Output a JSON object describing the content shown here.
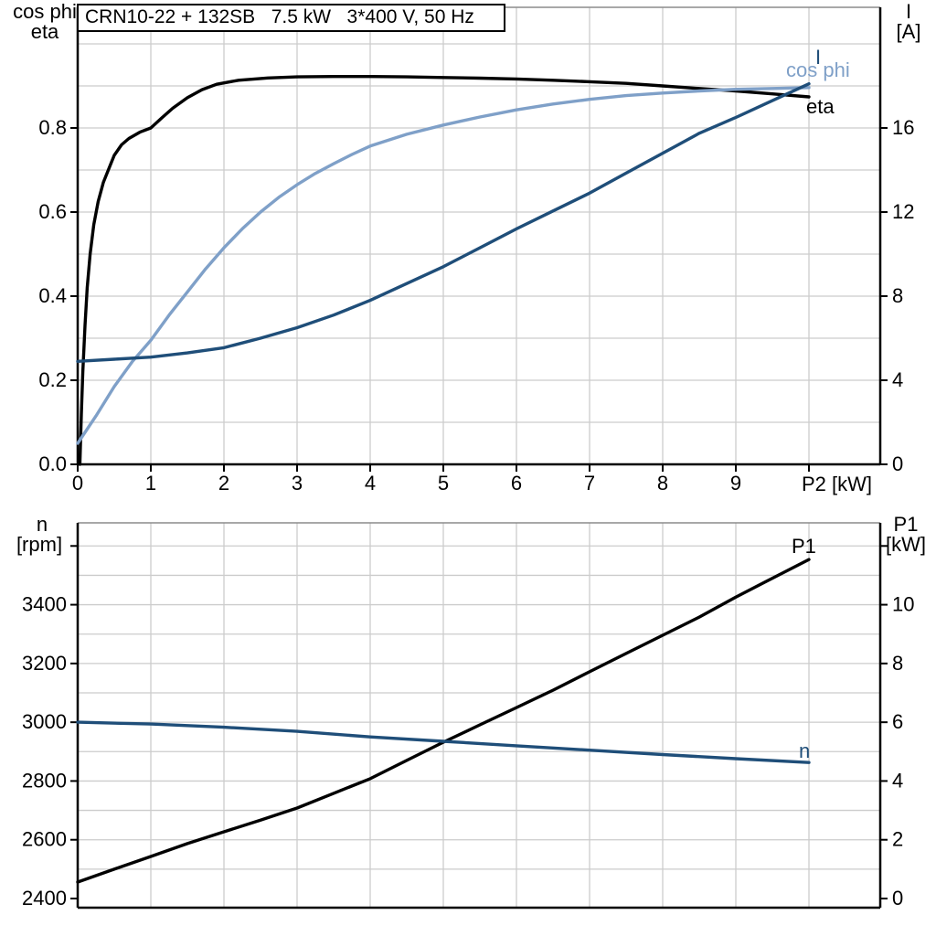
{
  "title": "CRN10-22 + 132SB   7.5 kW   3*400 V, 50 Hz",
  "colors": {
    "black": "#000000",
    "dark_blue": "#1F4E79",
    "light_blue": "#7FA0C8",
    "grid": "#CCCCCC",
    "frame_gray": "#8C8C8C"
  },
  "labels": {
    "top_left_line1": "cos phi",
    "top_left_line2": "eta",
    "top_right_line1": "I",
    "top_right_line2": "[A]",
    "x_axis": "P2 [kW]",
    "bottom_left_line1": "n",
    "bottom_left_line2": "[rpm]",
    "bottom_right_line1": "P1",
    "bottom_right_line2": "[kW]",
    "curve_i": "I",
    "curve_cos_phi": "cos phi",
    "curve_eta": "eta",
    "curve_p1": "P1",
    "curve_n": "n"
  },
  "axes": {
    "top_x_tick_labels": [
      "0",
      "1",
      "2",
      "3",
      "4",
      "5",
      "6",
      "7",
      "8",
      "9"
    ],
    "top_left_tick_labels": [
      "0.0",
      "0.2",
      "0.4",
      "0.6",
      "0.8"
    ],
    "top_right_tick_labels": [
      "0",
      "4",
      "8",
      "12",
      "16"
    ],
    "bottom_left_tick_labels": [
      "2400",
      "2600",
      "2800",
      "3000",
      "3200",
      "3400"
    ],
    "bottom_right_tick_labels": [
      "0",
      "2",
      "4",
      "6",
      "8",
      "10"
    ]
  },
  "chart_data": [
    {
      "id": "motor-efficiency-chart",
      "type": "line",
      "title": "CRN10-22 + 132SB   7.5 kW   3*400 V, 50 Hz",
      "xlabel": "P2 [kW]",
      "xlim": [
        0,
        10.97
      ],
      "x_gridline_step": 1,
      "left_axis": {
        "label": "cos phi / eta",
        "ticks": [
          0.0,
          0.2,
          0.4,
          0.6,
          0.8
        ],
        "lim": [
          0,
          1.087
        ],
        "gridline_step": 0.1
      },
      "right_axis": {
        "label": "I [A]",
        "ticks": [
          0,
          4,
          8,
          12,
          16
        ],
        "lim": [
          0,
          21.7
        ],
        "gridline_step": 2
      },
      "grid": true,
      "legend_position": "end-of-curve",
      "series": [
        {
          "name": "eta",
          "axis": "left",
          "color_key": "black",
          "x": [
            0.03,
            0.05,
            0.07,
            0.1,
            0.13,
            0.17,
            0.22,
            0.28,
            0.35,
            0.43,
            0.5,
            0.6,
            0.7,
            0.85,
            1.0,
            1.15,
            1.3,
            1.5,
            1.7,
            1.9,
            2.2,
            2.6,
            3.0,
            3.5,
            4.0,
            4.5,
            5.0,
            5.5,
            6.0,
            6.5,
            7.0,
            7.5,
            8.0,
            8.5,
            9.0,
            9.5,
            10.0
          ],
          "y": [
            0.0,
            0.12,
            0.22,
            0.33,
            0.42,
            0.5,
            0.57,
            0.625,
            0.67,
            0.705,
            0.735,
            0.76,
            0.775,
            0.79,
            0.8,
            0.824,
            0.847,
            0.872,
            0.891,
            0.904,
            0.9135,
            0.919,
            0.9215,
            0.9225,
            0.9225,
            0.9215,
            0.92,
            0.9185,
            0.9165,
            0.9135,
            0.91,
            0.906,
            0.9,
            0.894,
            0.888,
            0.881,
            0.874
          ]
        },
        {
          "name": "cos phi",
          "axis": "left",
          "color_key": "light_blue",
          "x": [
            0,
            0.25,
            0.5,
            0.75,
            1.0,
            1.25,
            1.5,
            1.75,
            2.0,
            2.25,
            2.5,
            2.75,
            3.0,
            3.25,
            3.5,
            3.75,
            4.0,
            4.5,
            5.0,
            5.5,
            6.0,
            6.5,
            7.0,
            7.5,
            8.0,
            8.5,
            9.0,
            9.5,
            10.0
          ],
          "y": [
            0.05,
            0.115,
            0.185,
            0.245,
            0.295,
            0.355,
            0.41,
            0.465,
            0.515,
            0.56,
            0.6,
            0.635,
            0.665,
            0.692,
            0.715,
            0.737,
            0.757,
            0.785,
            0.807,
            0.826,
            0.843,
            0.857,
            0.868,
            0.877,
            0.883,
            0.888,
            0.892,
            0.894,
            0.896
          ]
        },
        {
          "name": "I",
          "axis": "right",
          "color_key": "dark_blue",
          "x": [
            0,
            0.5,
            1,
            1.5,
            2,
            2.5,
            3,
            3.5,
            4,
            4.5,
            5,
            5.5,
            6,
            6.5,
            7,
            7.5,
            8,
            8.5,
            9,
            9.5,
            10
          ],
          "y": [
            4.9,
            5.0,
            5.1,
            5.3,
            5.55,
            6.0,
            6.5,
            7.1,
            7.8,
            8.6,
            9.4,
            10.3,
            11.2,
            12.05,
            12.9,
            13.85,
            14.8,
            15.75,
            16.5,
            17.3,
            18.1
          ]
        }
      ]
    },
    {
      "id": "motor-speed-power-chart",
      "type": "line",
      "xlabel": "P2 [kW]",
      "xlim": [
        0,
        10.97
      ],
      "x_gridline_step": 1,
      "left_axis": {
        "label": "n [rpm]",
        "ticks": [
          2400,
          2600,
          2800,
          3000,
          3200,
          3400
        ],
        "unlabeled_tick": 3600,
        "lim": [
          2370,
          3680
        ],
        "gridline_step": 100
      },
      "right_axis": {
        "label": "P1 [kW]",
        "ticks": [
          0,
          2,
          4,
          6,
          8,
          10
        ],
        "unlabeled_tick": 12,
        "lim": [
          -0.3,
          12.8
        ],
        "gridline_step": 1
      },
      "grid": true,
      "legend_position": "end-of-curve",
      "series": [
        {
          "name": "P1",
          "axis": "right",
          "color_key": "black",
          "x": [
            0,
            0.5,
            1,
            1.5,
            2,
            2.5,
            3,
            3.5,
            4,
            4.5,
            5,
            5.5,
            6,
            6.5,
            7,
            7.5,
            8,
            8.5,
            9,
            9.5,
            10
          ],
          "y": [
            0.56,
            1.0,
            1.43,
            1.87,
            2.27,
            2.67,
            3.08,
            3.58,
            4.08,
            4.7,
            5.32,
            5.91,
            6.5,
            7.09,
            7.72,
            8.34,
            8.96,
            9.58,
            10.26,
            10.9,
            11.54
          ]
        },
        {
          "name": "n",
          "axis": "left",
          "color_key": "dark_blue",
          "x": [
            0,
            1,
            2,
            3,
            4,
            5,
            6,
            7,
            8,
            9,
            10
          ],
          "y": [
            3000,
            2994,
            2983,
            2969,
            2950,
            2935,
            2920,
            2905,
            2890,
            2876,
            2863
          ]
        }
      ]
    }
  ]
}
